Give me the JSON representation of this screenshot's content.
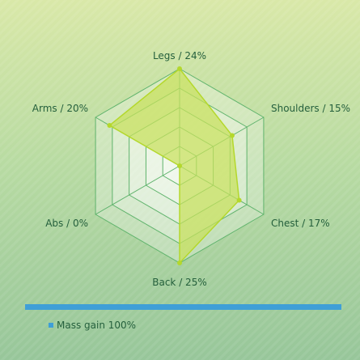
{
  "colors": {
    "series_fill": "#c8e15c",
    "series_stroke": "#b4d82c",
    "grid": "#5fb36c",
    "ring_fill": "#ffffff",
    "accent_bar": "#3f9fd7",
    "label": "#245f3c"
  },
  "chart_data": {
    "type": "radar",
    "axes": [
      "Legs",
      "Shoulders",
      "Chest",
      "Back",
      "Abs",
      "Arms"
    ],
    "axis_labels": [
      "Legs / 24%",
      "Shoulders / 15%",
      "Chest / 17%",
      "Back / 25%",
      "Abs / 0%",
      "Arms / 20%"
    ],
    "rmax": 24,
    "rings": 5,
    "series": [
      {
        "name": "Mass gain",
        "values": [
          24,
          15,
          17,
          25,
          0,
          20
        ]
      }
    ],
    "legend": {
      "placement": "bottom-left",
      "text": "Mass gain 100%"
    }
  }
}
